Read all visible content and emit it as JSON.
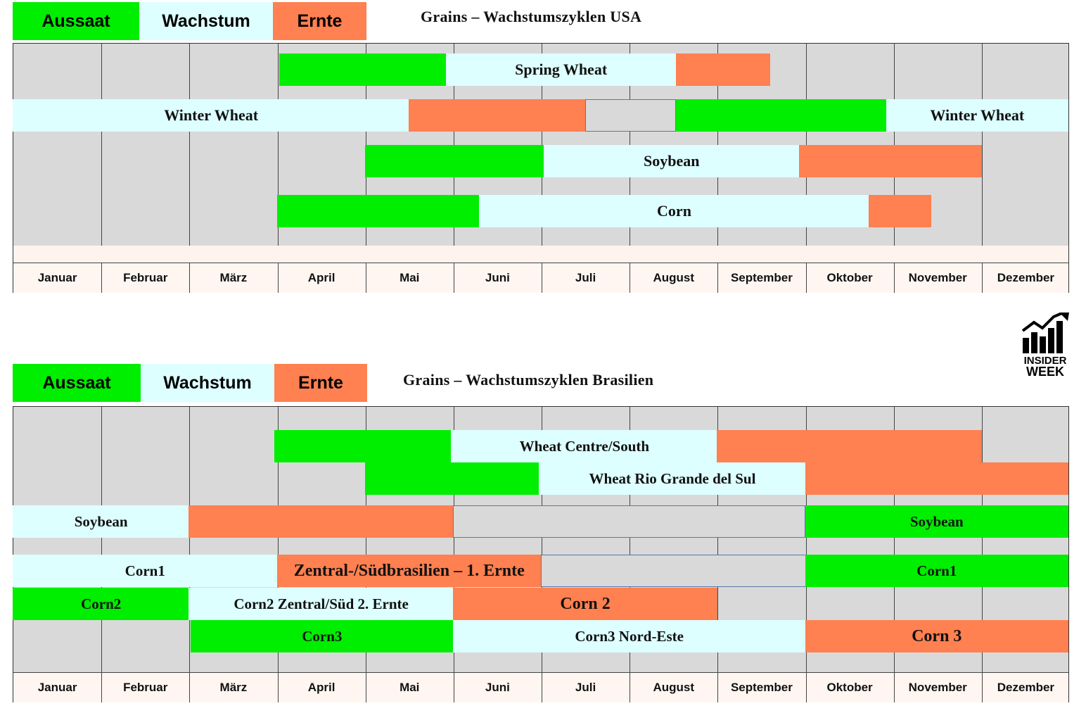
{
  "legend": {
    "sowing": "Aussaat",
    "growth": "Wachstum",
    "harvest": "Ernte"
  },
  "colors": {
    "sowing": "#00ee00",
    "growth": "#ddffff",
    "harvest": "#ff8050",
    "grid": "#d9d9d9"
  },
  "logo": {
    "line1": "INSIDER",
    "line2": "WEEK",
    "icon": "rising-chart-icon"
  },
  "chart_data": [
    {
      "type": "gantt",
      "title": "Grains – Wachstumszyklen USA",
      "months": [
        "Januar",
        "Februar",
        "März",
        "April",
        "Mai",
        "Juni",
        "Juli",
        "August",
        "September",
        "Oktober",
        "November",
        "Dezember"
      ],
      "rows": [
        {
          "segments": [
            {
              "phase": "sowing",
              "start": 3.03,
              "end": 4.92
            },
            {
              "phase": "growth",
              "start": 4.92,
              "end": 7.53,
              "label": "Spring Wheat"
            },
            {
              "phase": "harvest",
              "start": 7.53,
              "end": 8.6
            }
          ]
        },
        {
          "segments": [
            {
              "phase": "growth",
              "start": 0,
              "end": 4.5,
              "label": "Winter Wheat"
            },
            {
              "phase": "harvest",
              "start": 4.5,
              "end": 6.5
            },
            {
              "phase": "gap",
              "start": 6.5,
              "end": 7.53
            },
            {
              "phase": "sowing",
              "start": 7.53,
              "end": 9.92
            },
            {
              "phase": "growth",
              "start": 9.92,
              "end": 12,
              "label": "Winter Wheat"
            }
          ]
        },
        {
          "segments": [
            {
              "phase": "sowing",
              "start": 4.0,
              "end": 6.03
            },
            {
              "phase": "growth",
              "start": 6.03,
              "end": 8.93,
              "label": "Soybean"
            },
            {
              "phase": "harvest",
              "start": 8.93,
              "end": 11.0
            }
          ]
        },
        {
          "segments": [
            {
              "phase": "sowing",
              "start": 3.0,
              "end": 5.3
            },
            {
              "phase": "growth",
              "start": 5.3,
              "end": 9.72,
              "label": "Corn"
            },
            {
              "phase": "harvest",
              "start": 9.72,
              "end": 10.43
            }
          ]
        }
      ]
    },
    {
      "type": "gantt",
      "title": "Grains – Wachstumszyklen Brasilien",
      "months": [
        "Januar",
        "Februar",
        "März",
        "April",
        "Mai",
        "Juni",
        "Juli",
        "August",
        "September",
        "Oktober",
        "November",
        "Dezember"
      ],
      "rows": [
        {
          "segments": [
            {
              "phase": "sowing",
              "start": 2.97,
              "end": 4.98
            },
            {
              "phase": "growth",
              "start": 4.98,
              "end": 8.0,
              "label": "Wheat Centre/South"
            },
            {
              "phase": "harvest",
              "start": 8.0,
              "end": 11.0
            }
          ]
        },
        {
          "segments": [
            {
              "phase": "sowing",
              "start": 4.0,
              "end": 5.98
            },
            {
              "phase": "growth",
              "start": 5.98,
              "end": 9.0,
              "label": "Wheat Rio Grande del Sul"
            },
            {
              "phase": "harvest",
              "start": 9.0,
              "end": 12
            }
          ]
        },
        {
          "segments": [
            {
              "phase": "growth",
              "start": 0,
              "end": 2.0,
              "label": "Soybean"
            },
            {
              "phase": "harvest",
              "start": 2.0,
              "end": 5.0
            },
            {
              "phase": "gap",
              "start": 5.0,
              "end": 9.0
            },
            {
              "phase": "sowing",
              "start": 9.0,
              "end": 12,
              "label": "Soybean"
            }
          ]
        },
        {
          "segments": [
            {
              "phase": "growth",
              "start": 0,
              "end": 3.0,
              "label": "Corn1"
            },
            {
              "phase": "harvest",
              "start": 3.0,
              "end": 6.0,
              "label": "Zentral-/Südbrasilien – 1. Ernte",
              "big": true
            },
            {
              "phase": "gap",
              "start": 6.0,
              "end": 9.0
            },
            {
              "phase": "sowing",
              "start": 9.0,
              "end": 12,
              "label": "Corn1"
            }
          ]
        },
        {
          "segments": [
            {
              "phase": "sowing",
              "start": 0,
              "end": 2.0,
              "label": "Corn2"
            },
            {
              "phase": "growth",
              "start": 2.0,
              "end": 5.0,
              "label": "Corn2 Zentral/Süd 2. Ernte"
            },
            {
              "phase": "harvest",
              "start": 5.0,
              "end": 8.0,
              "label": "Corn 2",
              "big": true
            }
          ]
        },
        {
          "segments": [
            {
              "phase": "sowing",
              "start": 2.02,
              "end": 5.0,
              "label": "Corn3"
            },
            {
              "phase": "growth",
              "start": 5.0,
              "end": 9.0,
              "label": "Corn3 Nord-Este"
            },
            {
              "phase": "harvest",
              "start": 9.0,
              "end": 12,
              "label": "Corn 3",
              "big": true
            }
          ]
        }
      ]
    }
  ]
}
